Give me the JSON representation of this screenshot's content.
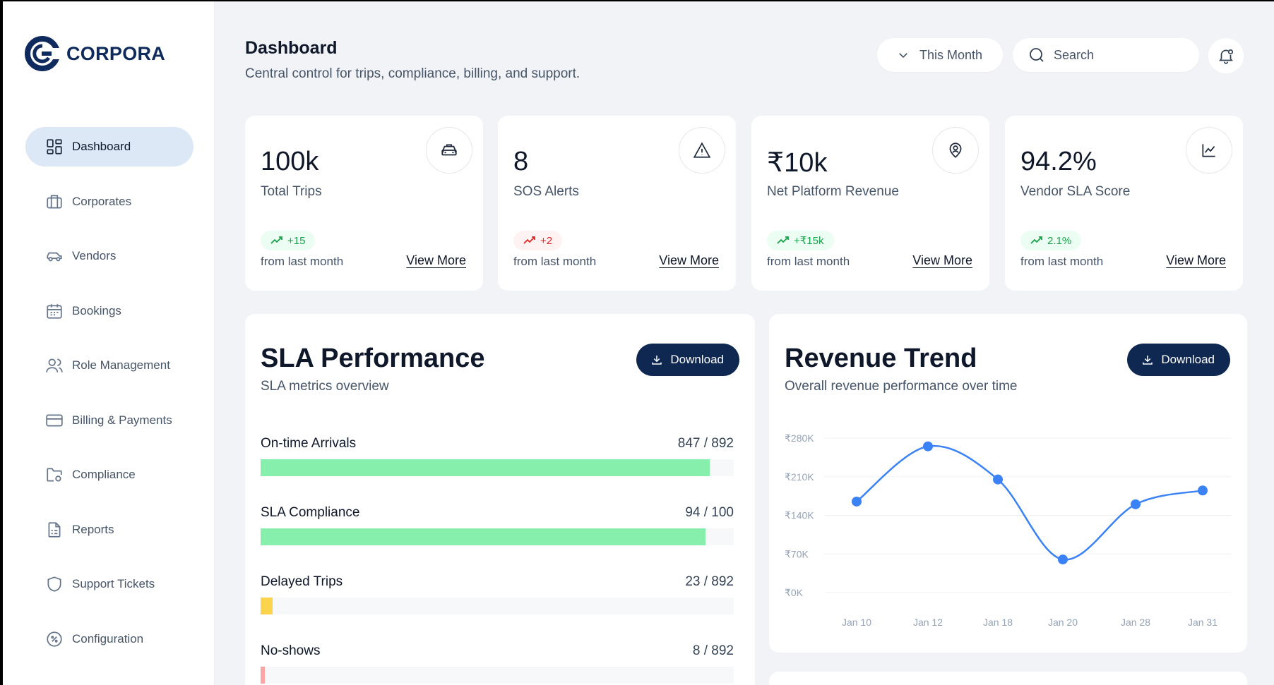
{
  "brand": {
    "name": "CORPORA",
    "color": "#0f2a5c"
  },
  "sidebar": {
    "items": [
      {
        "label": "Dashboard",
        "icon": "grid-icon",
        "active": true
      },
      {
        "label": "Corporates",
        "icon": "briefcase-icon"
      },
      {
        "label": "Vendors",
        "icon": "car-icon"
      },
      {
        "label": "Bookings",
        "icon": "calendar-icon"
      },
      {
        "label": "Role Management",
        "icon": "users-icon"
      },
      {
        "label": "Billing & Payments",
        "icon": "credit-card-icon"
      },
      {
        "label": "Compliance",
        "icon": "folder-gear-icon"
      },
      {
        "label": "Reports",
        "icon": "document-icon"
      },
      {
        "label": "Support Tickets",
        "icon": "shield-icon"
      },
      {
        "label": "Configuration",
        "icon": "settings-badge-icon"
      }
    ]
  },
  "header": {
    "title": "Dashboard",
    "subtitle": "Central control for trips, compliance, billing, and support.",
    "period_selected": "This Month",
    "search_placeholder": "Search"
  },
  "stats": [
    {
      "value": "100k",
      "label": "Total Trips",
      "change": "+15",
      "trend": "up",
      "foot": "from last month",
      "link": "View More",
      "icon": "taxi-icon"
    },
    {
      "value": "8",
      "label": "SOS Alerts",
      "change": "+2",
      "trend": "down",
      "foot": "from last month",
      "link": "View More",
      "icon": "warning-icon"
    },
    {
      "value": "₹10k",
      "label": "Net Platform Revenue",
      "change": "+₹15k",
      "trend": "up",
      "foot": "from last month",
      "link": "View More",
      "icon": "map-pin-user-icon"
    },
    {
      "value": "94.2%",
      "label": "Vendor SLA Score",
      "change": "2.1%",
      "trend": "up",
      "foot": "from last month",
      "link": "View More",
      "icon": "line-chart-icon"
    }
  ],
  "sla": {
    "title": "SLA Performance",
    "subtitle": "SLA metrics overview",
    "download_label": "Download",
    "metrics": [
      {
        "label": "On-time Arrivals",
        "display": "847 / 892",
        "value": 847,
        "total": 892,
        "color": "#86efac"
      },
      {
        "label": "SLA Compliance",
        "display": "94 / 100",
        "value": 94,
        "total": 100,
        "color": "#86efac"
      },
      {
        "label": "Delayed Trips",
        "display": "23 / 892",
        "value": 23,
        "total": 892,
        "color": "#fcd34d"
      },
      {
        "label": "No-shows",
        "display": "8 / 892",
        "value": 8,
        "total": 892,
        "color": "#fca5a5"
      }
    ]
  },
  "revenue": {
    "title": "Revenue Trend",
    "subtitle": "Overall revenue performance over time",
    "download_label": "Download",
    "chart_data": {
      "type": "line",
      "x": [
        "Jan 10",
        "Jan 12",
        "Jan 18",
        "Jan 20",
        "Jan 28",
        "Jan 31"
      ],
      "series": [
        {
          "values": [
            165000,
            265000,
            205000,
            60000,
            160000,
            185000
          ]
        }
      ],
      "yticks": [
        "₹0K",
        "₹70K",
        "₹140K",
        "₹210K",
        "₹280K"
      ],
      "ylim": [
        0,
        280000
      ],
      "grid": true,
      "color": "#3b82f6"
    }
  }
}
